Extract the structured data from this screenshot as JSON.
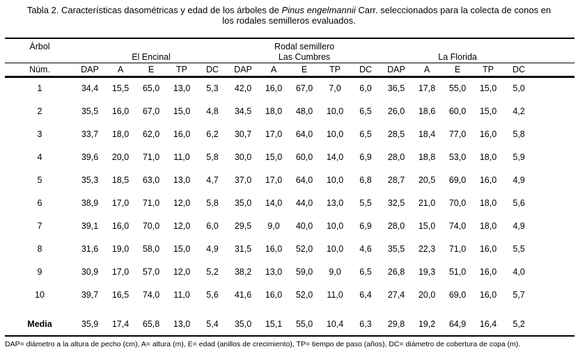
{
  "title": {
    "line1_before": "Tabla 2. Características dasométricas y edad de los árboles de ",
    "line1_italic": "Pinus engelmannii",
    "line1_after": " Carr. seleccionados para la colecta de conos en",
    "line2": "los rodales semilleros evaluados."
  },
  "table": {
    "col_group_label": "Árbol",
    "super_header": "Rodal semillero",
    "row_id_header": "Núm.",
    "site_groups": [
      "El Encinal",
      "Las Cumbres",
      "La Florida"
    ],
    "metric_headers": [
      "DAP",
      "A",
      "E",
      "TP",
      "DC"
    ],
    "rows": [
      {
        "num": "1",
        "values": [
          "34,4",
          "15,5",
          "65,0",
          "13,0",
          "5,3",
          "42,0",
          "16,0",
          "67,0",
          "7,0",
          "6,0",
          "36,5",
          "17,8",
          "55,0",
          "15,0",
          "5,0"
        ]
      },
      {
        "num": "2",
        "values": [
          "35,5",
          "16,0",
          "67,0",
          "15,0",
          "4,8",
          "34,5",
          "18,0",
          "48,0",
          "10,0",
          "6,5",
          "26,0",
          "18,6",
          "60,0",
          "15,0",
          "4,2"
        ]
      },
      {
        "num": "3",
        "values": [
          "33,7",
          "18,0",
          "62,0",
          "16,0",
          "6,2",
          "30,7",
          "17,0",
          "64,0",
          "10,0",
          "6,5",
          "28,5",
          "18,4",
          "77,0",
          "16,0",
          "5,8"
        ]
      },
      {
        "num": "4",
        "values": [
          "39,6",
          "20,0",
          "71,0",
          "11,0",
          "5,8",
          "30,0",
          "15,0",
          "60,0",
          "14,0",
          "6,9",
          "28,0",
          "18,8",
          "53,0",
          "18,0",
          "5,9"
        ]
      },
      {
        "num": "5",
        "values": [
          "35,3",
          "18,5",
          "63,0",
          "13,0",
          "4,7",
          "37,0",
          "17,0",
          "64,0",
          "10,0",
          "6,8",
          "28,7",
          "20,5",
          "69,0",
          "16,0",
          "4,9"
        ]
      },
      {
        "num": "6",
        "values": [
          "38,9",
          "17,0",
          "71,0",
          "12,0",
          "5,8",
          "35,0",
          "14,0",
          "44,0",
          "13,0",
          "5,5",
          "32,5",
          "21,0",
          "70,0",
          "18,0",
          "5,6"
        ]
      },
      {
        "num": "7",
        "values": [
          "39,1",
          "16,0",
          "70,0",
          "12,0",
          "6,0",
          "29,5",
          "9,0",
          "40,0",
          "10,0",
          "6,9",
          "28,0",
          "15,0",
          "74,0",
          "18,0",
          "4,9"
        ]
      },
      {
        "num": "8",
        "values": [
          "31,6",
          "19,0",
          "58,0",
          "15,0",
          "4,9",
          "31,5",
          "16,0",
          "52,0",
          "10,0",
          "4,6",
          "35,5",
          "22,3",
          "71,0",
          "16,0",
          "5,5"
        ]
      },
      {
        "num": "9",
        "values": [
          "30,9",
          "17,0",
          "57,0",
          "12,0",
          "5,2",
          "38,2",
          "13,0",
          "59,0",
          "9,0",
          "6,5",
          "26,8",
          "19,3",
          "51,0",
          "16,0",
          "4,0"
        ]
      },
      {
        "num": "10",
        "values": [
          "39,7",
          "16,5",
          "74,0",
          "11,0",
          "5,6",
          "41,6",
          "16,0",
          "52,0",
          "11,0",
          "6,4",
          "27,4",
          "20,0",
          "69,0",
          "16,0",
          "5,7"
        ]
      }
    ],
    "media": {
      "label": "Media",
      "values": [
        "35,9",
        "17,4",
        "65,8",
        "13,0",
        "5,4",
        "35,0",
        "15,1",
        "55,0",
        "10,4",
        "6,3",
        "29,8",
        "19,2",
        "64,9",
        "16,4",
        "5,2"
      ]
    }
  },
  "footnote": "DAP= diámetro a la altura de pecho (cm), A= altura (m), E= edad (anillos de crecimiento), TP= tiempo de paso (años), DC= diámetro de cobertura de copa (m)."
}
